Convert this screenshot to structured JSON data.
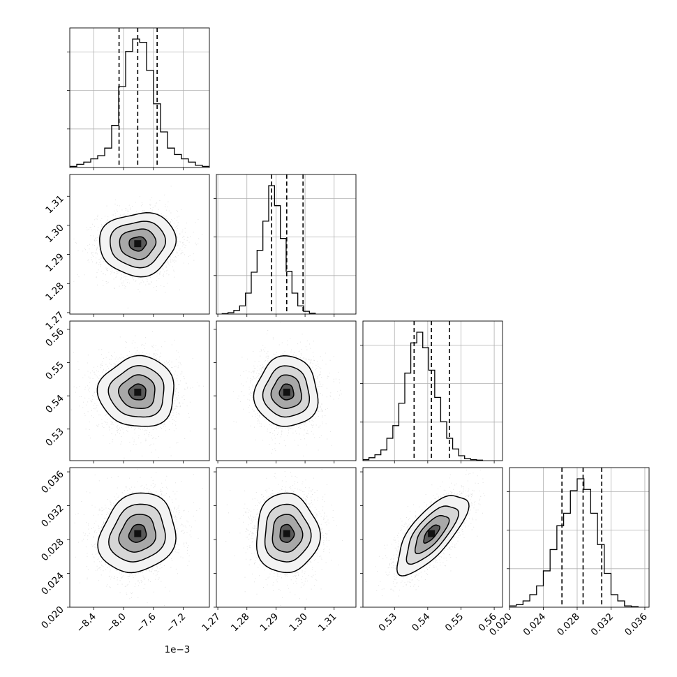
{
  "chart_data": {
    "type": "corner-plot",
    "description_free": true,
    "parameters": [
      {
        "ticks": [
          -8.4,
          -8.0,
          -7.6,
          -7.2
        ],
        "tick_labels": [
          "−8.4",
          "−8.0",
          "−7.6",
          "−7.2"
        ],
        "offset_text": "1e−3",
        "range": [
          -8.72,
          -6.85
        ],
        "quantiles": [
          -8.06,
          -7.81,
          -7.55
        ],
        "histogram": {
          "edges_start": -8.72,
          "bin_width": 0.0935,
          "counts": [
            2,
            6,
            10,
            16,
            22,
            36,
            78,
            150,
            215,
            238,
            232,
            180,
            118,
            66,
            36,
            24,
            16,
            10,
            4,
            2
          ]
        }
      },
      {
        "ticks": [
          1.27,
          1.28,
          1.29,
          1.3,
          1.31
        ],
        "tick_labels": [
          "1.27",
          "1.28",
          "1.29",
          "1.30",
          "1.31"
        ],
        "range": [
          1.2695,
          1.3175
        ],
        "quantiles": [
          1.2885,
          1.2937,
          1.2993
        ],
        "histogram": {
          "edges_start": 1.2715,
          "bin_width": 0.002,
          "counts": [
            1,
            3,
            8,
            18,
            46,
            92,
            140,
            204,
            282,
            238,
            166,
            94,
            46,
            18,
            6,
            2
          ]
        }
      },
      {
        "ticks": [
          0.53,
          0.54,
          0.55,
          0.56
        ],
        "tick_labels": [
          "0.53",
          "0.54",
          "0.55",
          "0.56"
        ],
        "range": [
          0.5205,
          0.5625
        ],
        "quantiles": [
          0.5359,
          0.5411,
          0.5465
        ],
        "histogram": {
          "edges_start": 0.5205,
          "bin_width": 0.0018,
          "counts": [
            2,
            6,
            12,
            22,
            46,
            72,
            118,
            180,
            242,
            264,
            232,
            186,
            130,
            80,
            46,
            24,
            10,
            4,
            2,
            1
          ]
        }
      },
      {
        "ticks": [
          0.02,
          0.024,
          0.028,
          0.032,
          0.036
        ],
        "tick_labels": [
          "0.020",
          "0.024",
          "0.028",
          "0.032",
          "0.036"
        ],
        "range": [
          0.02,
          0.0365
        ],
        "quantiles": [
          0.0262,
          0.0287,
          0.0309
        ],
        "histogram": {
          "edges_start": 0.02,
          "bin_width": 0.0008,
          "counts": [
            2,
            4,
            10,
            20,
            34,
            58,
            92,
            130,
            150,
            186,
            205,
            188,
            150,
            100,
            54,
            20,
            10,
            2,
            1
          ]
        }
      }
    ],
    "correlations": {
      "1_0": 0.05,
      "2_0": 0.0,
      "2_1": 0.0,
      "3_0": 0.15,
      "3_1": 0.0,
      "3_2": 0.72
    },
    "grid": true,
    "colors": {
      "line": "#000000",
      "points": "#c8c8c8",
      "grid": "#b0b0b0"
    }
  }
}
